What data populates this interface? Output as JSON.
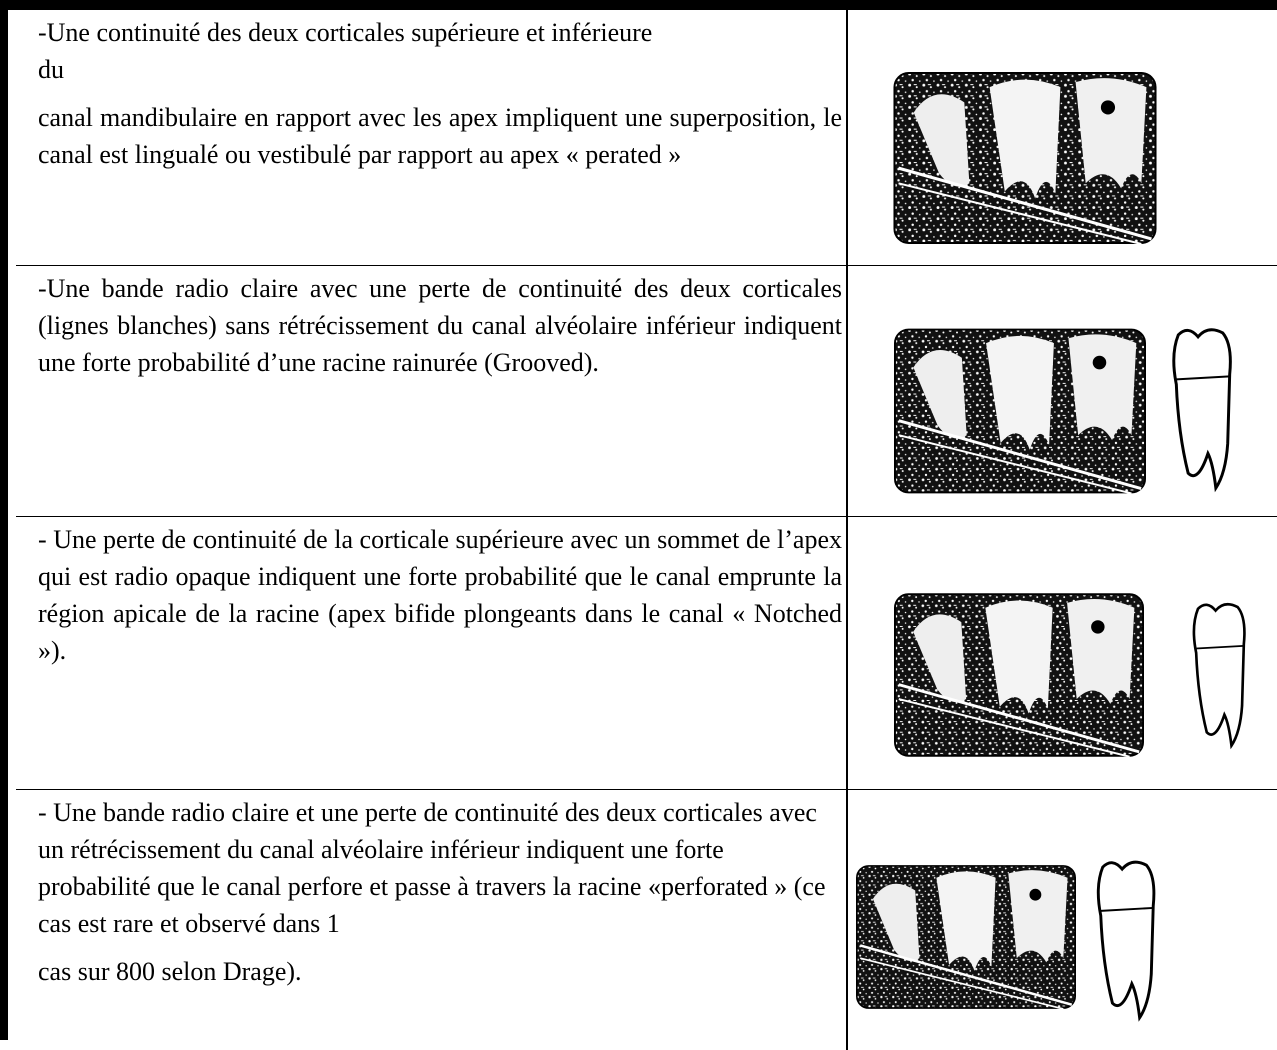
{
  "table": {
    "rows": [
      {
        "paragraphs": [
          {
            "lines": [
              "-Une continuité des deux corticales supérieure et inférieure",
              "du"
            ]
          },
          {
            "text": "canal mandibulaire en rapport avec les apex impliquent une superposition, le canal est lingualé ou vestibulé par rapport au apex « perated »"
          }
        ]
      },
      {
        "paragraphs": [
          {
            "text": "-Une bande radio claire avec une perte de continuité des deux corticales (lignes blanches) sans rétrécissement du canal alvéolaire inférieur indiquent une forte probabilité d’une racine rainurée (Grooved)."
          }
        ]
      },
      {
        "paragraphs": [
          {
            "text": "- Une perte de continuité de la corticale supérieure avec un sommet de l’apex qui est radio opaque indiquent une forte probabilité que le canal emprunte la région apicale de la racine (apex bifide plongeants dans le canal « Notched »)."
          }
        ]
      },
      {
        "paragraphs": [
          {
            "text": "- Une bande radio claire et une perte de continuité des deux corticales avec un rétrécissement du canal alvéolaire inférieur indiquent une forte probabilité que le canal perfore et passe à travers la racine «perforated » (ce cas est rare et observé dans 1"
          },
          {
            "text": "cas sur 800 selon Drage)."
          }
        ]
      }
    ]
  }
}
